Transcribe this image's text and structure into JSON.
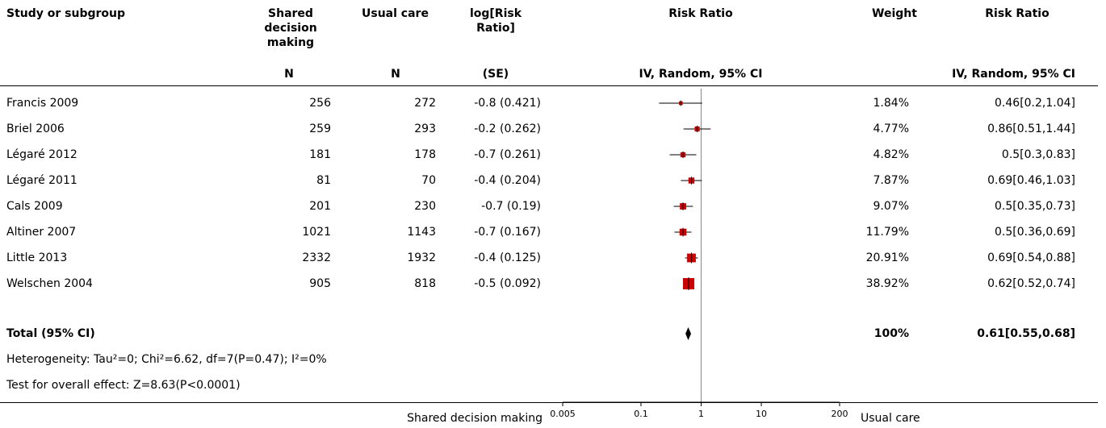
{
  "headers": {
    "study": "Study or subgroup",
    "group1": "Shared decision making",
    "group2": "Usual care",
    "logrr": "log[Risk Ratio]",
    "plot": "Risk Ratio",
    "weight": "Weight",
    "rr": "Risk Ratio",
    "n1": "N",
    "n2": "N",
    "se": "(SE)",
    "plot_method": "IV, Random, 95% CI",
    "rr_method": "IV, Random, 95% CI"
  },
  "total": {
    "label": "Total (95% CI)",
    "weight": "100%",
    "rr": "0.61[0.55,0.68]"
  },
  "heterogeneity": "Heterogeneity: Tau²=0; Chi²=6.62, df=7(P=0.47); I²=0%",
  "overall_effect": "Test for overall effect: Z=8.63(P<0.0001)",
  "axis": {
    "left_label": "Shared decision making",
    "right_label": "Usual care",
    "ticks": [
      "0.005",
      "0.1",
      "1",
      "10",
      "200"
    ]
  },
  "chart_data": {
    "type": "forest",
    "scale": "log",
    "xlim": [
      0.005,
      200
    ],
    "null_line": 1,
    "marker_color": "#cc0000",
    "studies": [
      {
        "name": "Francis 2009",
        "n1": "256",
        "n2": "272",
        "logrr_se": "-0.8 (0.421)",
        "weight": "1.84%",
        "rr_text": "0.46[0.2,1.04]",
        "rr": 0.46,
        "lo": 0.2,
        "hi": 1.04,
        "w": 1.84
      },
      {
        "name": "Briel 2006",
        "n1": "259",
        "n2": "293",
        "logrr_se": "-0.2 (0.262)",
        "weight": "4.77%",
        "rr_text": "0.86[0.51,1.44]",
        "rr": 0.86,
        "lo": 0.51,
        "hi": 1.44,
        "w": 4.77
      },
      {
        "name": "Légaré 2012",
        "n1": "181",
        "n2": "178",
        "logrr_se": "-0.7 (0.261)",
        "weight": "4.82%",
        "rr_text": "0.5[0.3,0.83]",
        "rr": 0.5,
        "lo": 0.3,
        "hi": 0.83,
        "w": 4.82
      },
      {
        "name": "Légaré 2011",
        "n1": "81",
        "n2": "70",
        "logrr_se": "-0.4 (0.204)",
        "weight": "7.87%",
        "rr_text": "0.69[0.46,1.03]",
        "rr": 0.69,
        "lo": 0.46,
        "hi": 1.03,
        "w": 7.87
      },
      {
        "name": "Cals 2009",
        "n1": "201",
        "n2": "230",
        "logrr_se": "-0.7 (0.19)",
        "weight": "9.07%",
        "rr_text": "0.5[0.35,0.73]",
        "rr": 0.5,
        "lo": 0.35,
        "hi": 0.73,
        "w": 9.07
      },
      {
        "name": "Altiner 2007",
        "n1": "1021",
        "n2": "1143",
        "logrr_se": "-0.7 (0.167)",
        "weight": "11.79%",
        "rr_text": "0.5[0.36,0.69]",
        "rr": 0.5,
        "lo": 0.36,
        "hi": 0.69,
        "w": 11.79
      },
      {
        "name": "Little 2013",
        "n1": "2332",
        "n2": "1932",
        "logrr_se": "-0.4 (0.125)",
        "weight": "20.91%",
        "rr_text": "0.69[0.54,0.88]",
        "rr": 0.69,
        "lo": 0.54,
        "hi": 0.88,
        "w": 20.91
      },
      {
        "name": "Welschen 2004",
        "n1": "905",
        "n2": "818",
        "logrr_se": "-0.5 (0.092)",
        "weight": "38.92%",
        "rr_text": "0.62[0.52,0.74]",
        "rr": 0.62,
        "lo": 0.52,
        "hi": 0.74,
        "w": 38.92
      }
    ],
    "pooled": {
      "rr": 0.61,
      "lo": 0.55,
      "hi": 0.68
    }
  }
}
